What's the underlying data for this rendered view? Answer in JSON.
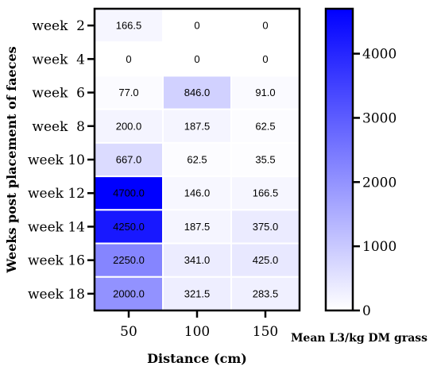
{
  "chart_data": {
    "type": "heatmap",
    "xlabel": "Distance (cm)",
    "ylabel": "Weeks post placement of faeces",
    "x_categories": [
      "50",
      "100",
      "150"
    ],
    "y_categories": [
      "week  2",
      "week  4",
      "week  6",
      "week  8",
      "week 10",
      "week 12",
      "week 14",
      "week 16",
      "week 18"
    ],
    "cell_values": [
      [
        166.5,
        0,
        0
      ],
      [
        0,
        0,
        0
      ],
      [
        77.0,
        846.0,
        91.0
      ],
      [
        200.0,
        187.5,
        62.5
      ],
      [
        667.0,
        62.5,
        35.5
      ],
      [
        4700.0,
        146.0,
        166.5
      ],
      [
        4250.0,
        187.5,
        375.0
      ],
      [
        2250.0,
        341.0,
        425.0
      ],
      [
        2000.0,
        321.5,
        283.5
      ]
    ],
    "cell_labels": [
      [
        "166.5",
        "0",
        "0"
      ],
      [
        "0",
        "0",
        "0"
      ],
      [
        "77.0",
        "846.0",
        "91.0"
      ],
      [
        "200.0",
        "187.5",
        "62.5"
      ],
      [
        "667.0",
        "62.5",
        "35.5"
      ],
      [
        "4700.0",
        "146.0",
        "166.5"
      ],
      [
        "4250.0",
        "187.5",
        "375.0"
      ],
      [
        "2250.0",
        "341.0",
        "425.0"
      ],
      [
        "2000.0",
        "321.5",
        "283.5"
      ]
    ],
    "colorbar": {
      "label": "Mean L3/kg DM grass",
      "min": 0,
      "max": 4700,
      "ticks": [
        0,
        1000,
        2000,
        3000,
        4000
      ],
      "tick_labels": [
        "0",
        "1000",
        "2000",
        "3000",
        "4000"
      ],
      "color_low": "#ffffff",
      "color_high": "#0000ff"
    }
  }
}
